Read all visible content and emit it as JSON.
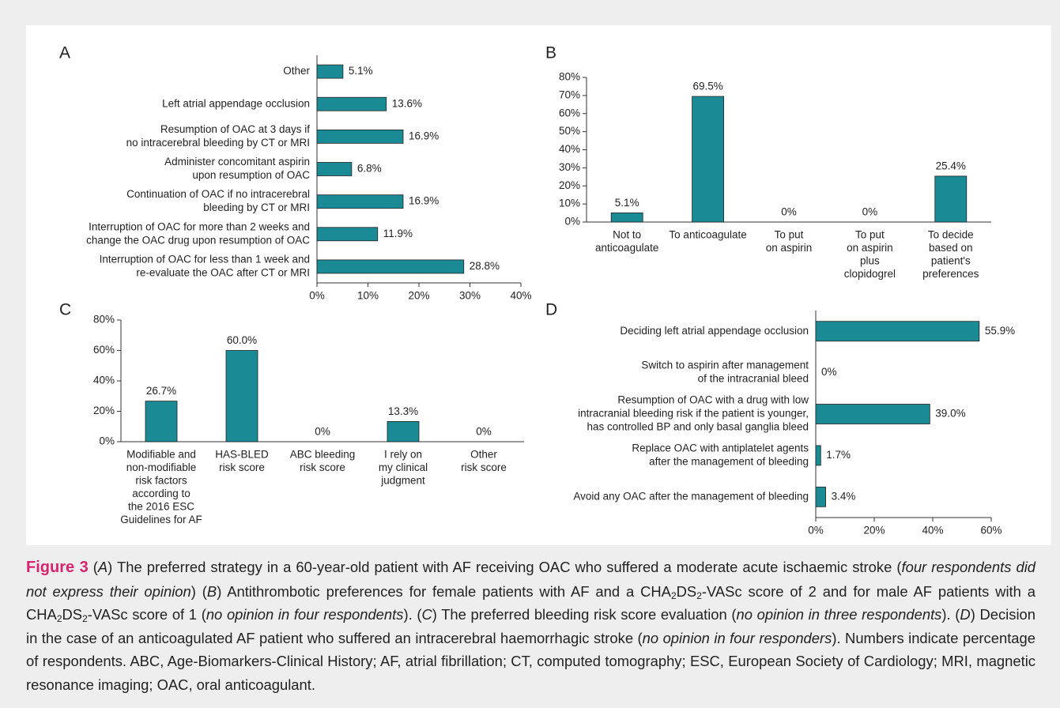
{
  "chart_data": [
    {
      "type": "hbar",
      "panel": "A",
      "categories": [
        [
          "Other"
        ],
        [
          "Left atrial appendage occlusion"
        ],
        [
          "Resumption of OAC at 3 days if",
          "no intracerebral bleeding by CT or MRI"
        ],
        [
          "Administer concomitant aspirin",
          "upon resumption of OAC"
        ],
        [
          "Continuation of OAC if no intracerebral",
          "bleeding by CT or MRI"
        ],
        [
          "Interruption of OAC for more than 2 weeks and",
          "change the OAC drug upon resumption of OAC"
        ],
        [
          "Interruption of OAC for less than 1 week and",
          "re-evaluate the OAC after CT or MRI"
        ]
      ],
      "values": [
        5.1,
        13.6,
        16.9,
        6.8,
        16.9,
        11.9,
        28.8
      ],
      "value_labels": [
        "5.1%",
        "13.6%",
        "16.9%",
        "6.8%",
        "16.9%",
        "11.9%",
        "28.8%"
      ],
      "color": "#1a8a94",
      "xlim": [
        0,
        40
      ],
      "xticks": [
        {
          "value": 0,
          "label": "0%"
        },
        {
          "value": 10,
          "label": "10%"
        },
        {
          "value": 20,
          "label": "20%"
        },
        {
          "value": 30,
          "label": "30%"
        },
        {
          "value": 40,
          "label": "40%"
        }
      ]
    },
    {
      "type": "bar",
      "panel": "B",
      "categories": [
        [
          "Not to",
          "anticoagulate"
        ],
        [
          "To anticoagulate"
        ],
        [
          "To put",
          "on aspirin"
        ],
        [
          "To put",
          "on aspirin",
          "plus",
          "clopidogrel"
        ],
        [
          "To decide",
          "based on",
          "patient's",
          "preferences"
        ]
      ],
      "values": [
        5.1,
        69.5,
        0,
        0,
        25.4
      ],
      "value_labels": [
        "5.1%",
        "69.5%",
        "0%",
        "0%",
        "25.4%"
      ],
      "color": "#1a8a94",
      "ylim": [
        0,
        80
      ],
      "yticks": [
        {
          "value": 0,
          "label": "0%"
        },
        {
          "value": 10,
          "label": "10%"
        },
        {
          "value": 20,
          "label": "20%"
        },
        {
          "value": 30,
          "label": "30%"
        },
        {
          "value": 40,
          "label": "40%"
        },
        {
          "value": 50,
          "label": "50%"
        },
        {
          "value": 60,
          "label": "60%"
        },
        {
          "value": 70,
          "label": "70%"
        },
        {
          "value": 80,
          "label": "80%"
        }
      ]
    },
    {
      "type": "bar",
      "panel": "C",
      "categories": [
        [
          "Modifiable and",
          "non-modifiable",
          "risk factors",
          "according to",
          "the 2016 ESC",
          "Guidelines for AF"
        ],
        [
          "HAS-BLED",
          "risk score"
        ],
        [
          "ABC bleeding",
          "risk score"
        ],
        [
          "I rely on",
          "my clinical",
          "judgment"
        ],
        [
          "Other",
          "risk score"
        ]
      ],
      "values": [
        26.7,
        60,
        0,
        13.3,
        0
      ],
      "value_labels": [
        "26.7%",
        "60.0%",
        "0%",
        "13.3%",
        "0%"
      ],
      "color": "#1a8a94",
      "ylim": [
        0,
        80
      ],
      "yticks": [
        {
          "value": 0,
          "label": "0%"
        },
        {
          "value": 20,
          "label": "20%"
        },
        {
          "value": 40,
          "label": "40%"
        },
        {
          "value": 60,
          "label": "60%"
        },
        {
          "value": 80,
          "label": "80%"
        }
      ]
    },
    {
      "type": "hbar",
      "panel": "D",
      "categories": [
        [
          "Deciding left atrial appendage occlusion"
        ],
        [
          "Switch to aspirin after management",
          "of the intracranial bleed"
        ],
        [
          "Resumption of OAC with a drug with low",
          "intracranial bleeding risk if the patient is younger,",
          "has controlled BP and only basal ganglia bleed"
        ],
        [
          "Replace OAC with antiplatelet agents",
          "after the management of bleeding"
        ],
        [
          "Avoid any OAC after the management of bleeding"
        ]
      ],
      "values": [
        55.9,
        0,
        39,
        1.7,
        3.4
      ],
      "value_labels": [
        "55.9%",
        "0%",
        "39.0%",
        "1.7%",
        "3.4%"
      ],
      "color": "#1a8a94",
      "xlim": [
        0,
        60
      ],
      "xticks": [
        {
          "value": 0,
          "label": "0%"
        },
        {
          "value": 20,
          "label": "20%"
        },
        {
          "value": 40,
          "label": "40%"
        },
        {
          "value": 60,
          "label": "60%"
        }
      ]
    }
  ],
  "caption": {
    "segments": [
      "Figure 3",
      " (",
      "A",
      ") The preferred strategy in a 60-year-old patient with AF receiving OAC who suffered a moderate acute ischaemic stroke (",
      "four respondents did not express their opinion",
      ") (",
      "B",
      ") Antithrombotic preferences for female patients with AF and a CHA",
      "2",
      "DS",
      "2",
      "-VASc score of 2 and for male AF patients with a CHA",
      "2",
      "DS",
      "2",
      "-VASc score of 1 (",
      "no opinion in four respondents",
      "). (",
      "C",
      ") The preferred bleeding risk score evaluation (",
      "no opinion in three respondents",
      "). (",
      "D",
      ") Decision in the case of an anticoagulated AF patient who suffered an intracerebral haemorrhagic stroke (",
      "no opinion in four responders",
      "). Numbers indicate percentage of respondents. ABC, Age-Biomarkers-Clinical History; AF, atrial fibrillation; CT, computed tomography; ESC, European Society of Cardiology; MRI, magnetic resonance imaging; OAC, oral anticoagulant."
    ]
  }
}
